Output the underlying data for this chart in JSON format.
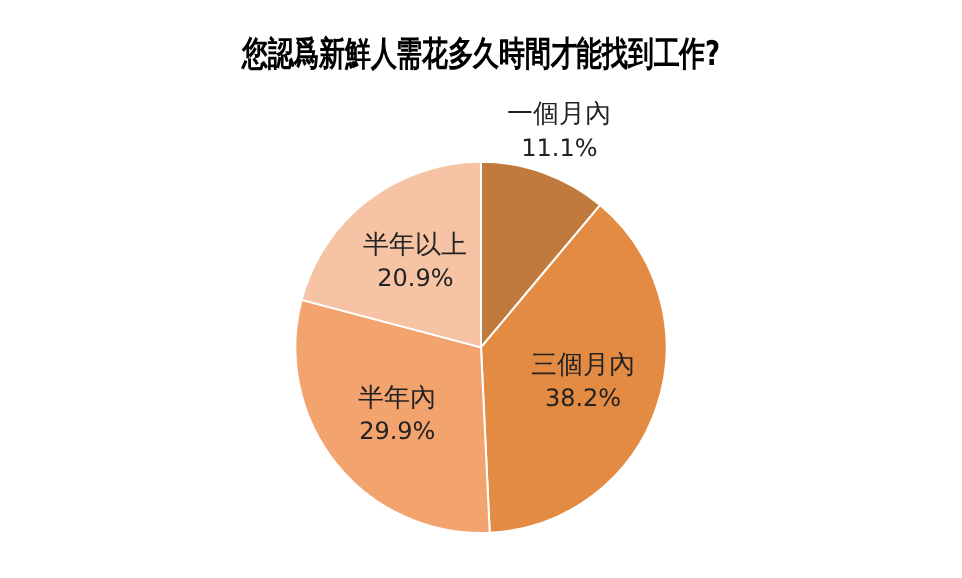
{
  "chart_data": {
    "type": "pie",
    "title": "您認爲新鮮人需花多久時間才能找到工作?",
    "categories": [
      "一個月內",
      "三個月內",
      "半年內",
      "半年以上"
    ],
    "values": [
      11.1,
      38.2,
      29.9,
      20.9
    ],
    "value_labels": [
      "11.1%",
      "38.2%",
      "29.9%",
      "20.9%"
    ],
    "colors": [
      "#c17a3e",
      "#e38b43",
      "#f2a36e",
      "#f6c4a4"
    ],
    "legend": false
  }
}
